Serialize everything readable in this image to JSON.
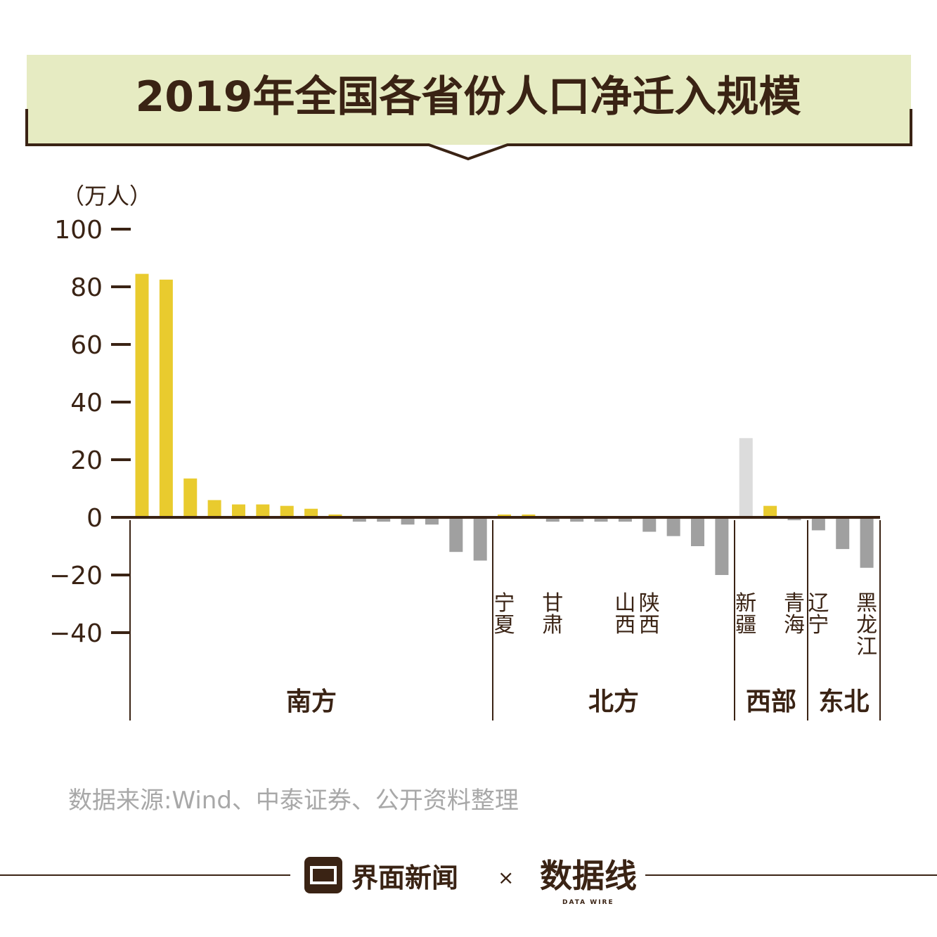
{
  "title": "2019年全国各省份人口净迁入规模",
  "source": "数据来源:Wind、中泰证券、公开资料整理",
  "footer": {
    "brand": "界面新闻",
    "times": "×",
    "partner_logo": "数据线",
    "partner_sub": "DATA WIRE"
  },
  "watermark": "数据线 DATA WIRE",
  "colors": {
    "positive": "#E9CB2E",
    "negative": "#A0A0A0",
    "highlight": "#DCDCDC",
    "axis": "#3A2314",
    "title_bg": "#E6EBC2"
  },
  "chart_data": {
    "type": "bar",
    "unit_label": "（万人）",
    "ylim": [
      -40,
      100
    ],
    "yticks": [
      100,
      80,
      60,
      40,
      20,
      0,
      -20,
      -40
    ],
    "ytick_labels": [
      "100",
      "80",
      "60",
      "40",
      "20",
      "0",
      "−20",
      "−40"
    ],
    "values": [
      84,
      82,
      13,
      5.5,
      4,
      4,
      3.5,
      2.5,
      0.5,
      -1.5,
      -1.5,
      -2.5,
      -2.5,
      -12,
      -15,
      0.5,
      0.5,
      -1.5,
      -1.5,
      -1.5,
      -1.5,
      -5,
      -6.5,
      -10,
      -20,
      27,
      3.5,
      -1,
      -4.5,
      -11,
      -17.5
    ],
    "categories": [
      "",
      "",
      "",
      "",
      "",
      "",
      "",
      "",
      "",
      "",
      "",
      "",
      "",
      "",
      "",
      "宁夏",
      "",
      "甘肃",
      "",
      "",
      "山西",
      "陕西",
      "",
      "",
      "",
      "新疆",
      "",
      "青海",
      "辽宁",
      "",
      "黑龙江"
    ],
    "highlight_index": 25,
    "groups": [
      {
        "name": "南方",
        "start": 0,
        "end": 14
      },
      {
        "name": "北方",
        "start": 15,
        "end": 24
      },
      {
        "name": "西部",
        "start": 25,
        "end": 27
      },
      {
        "name": "东北",
        "start": 28,
        "end": 30
      }
    ]
  }
}
